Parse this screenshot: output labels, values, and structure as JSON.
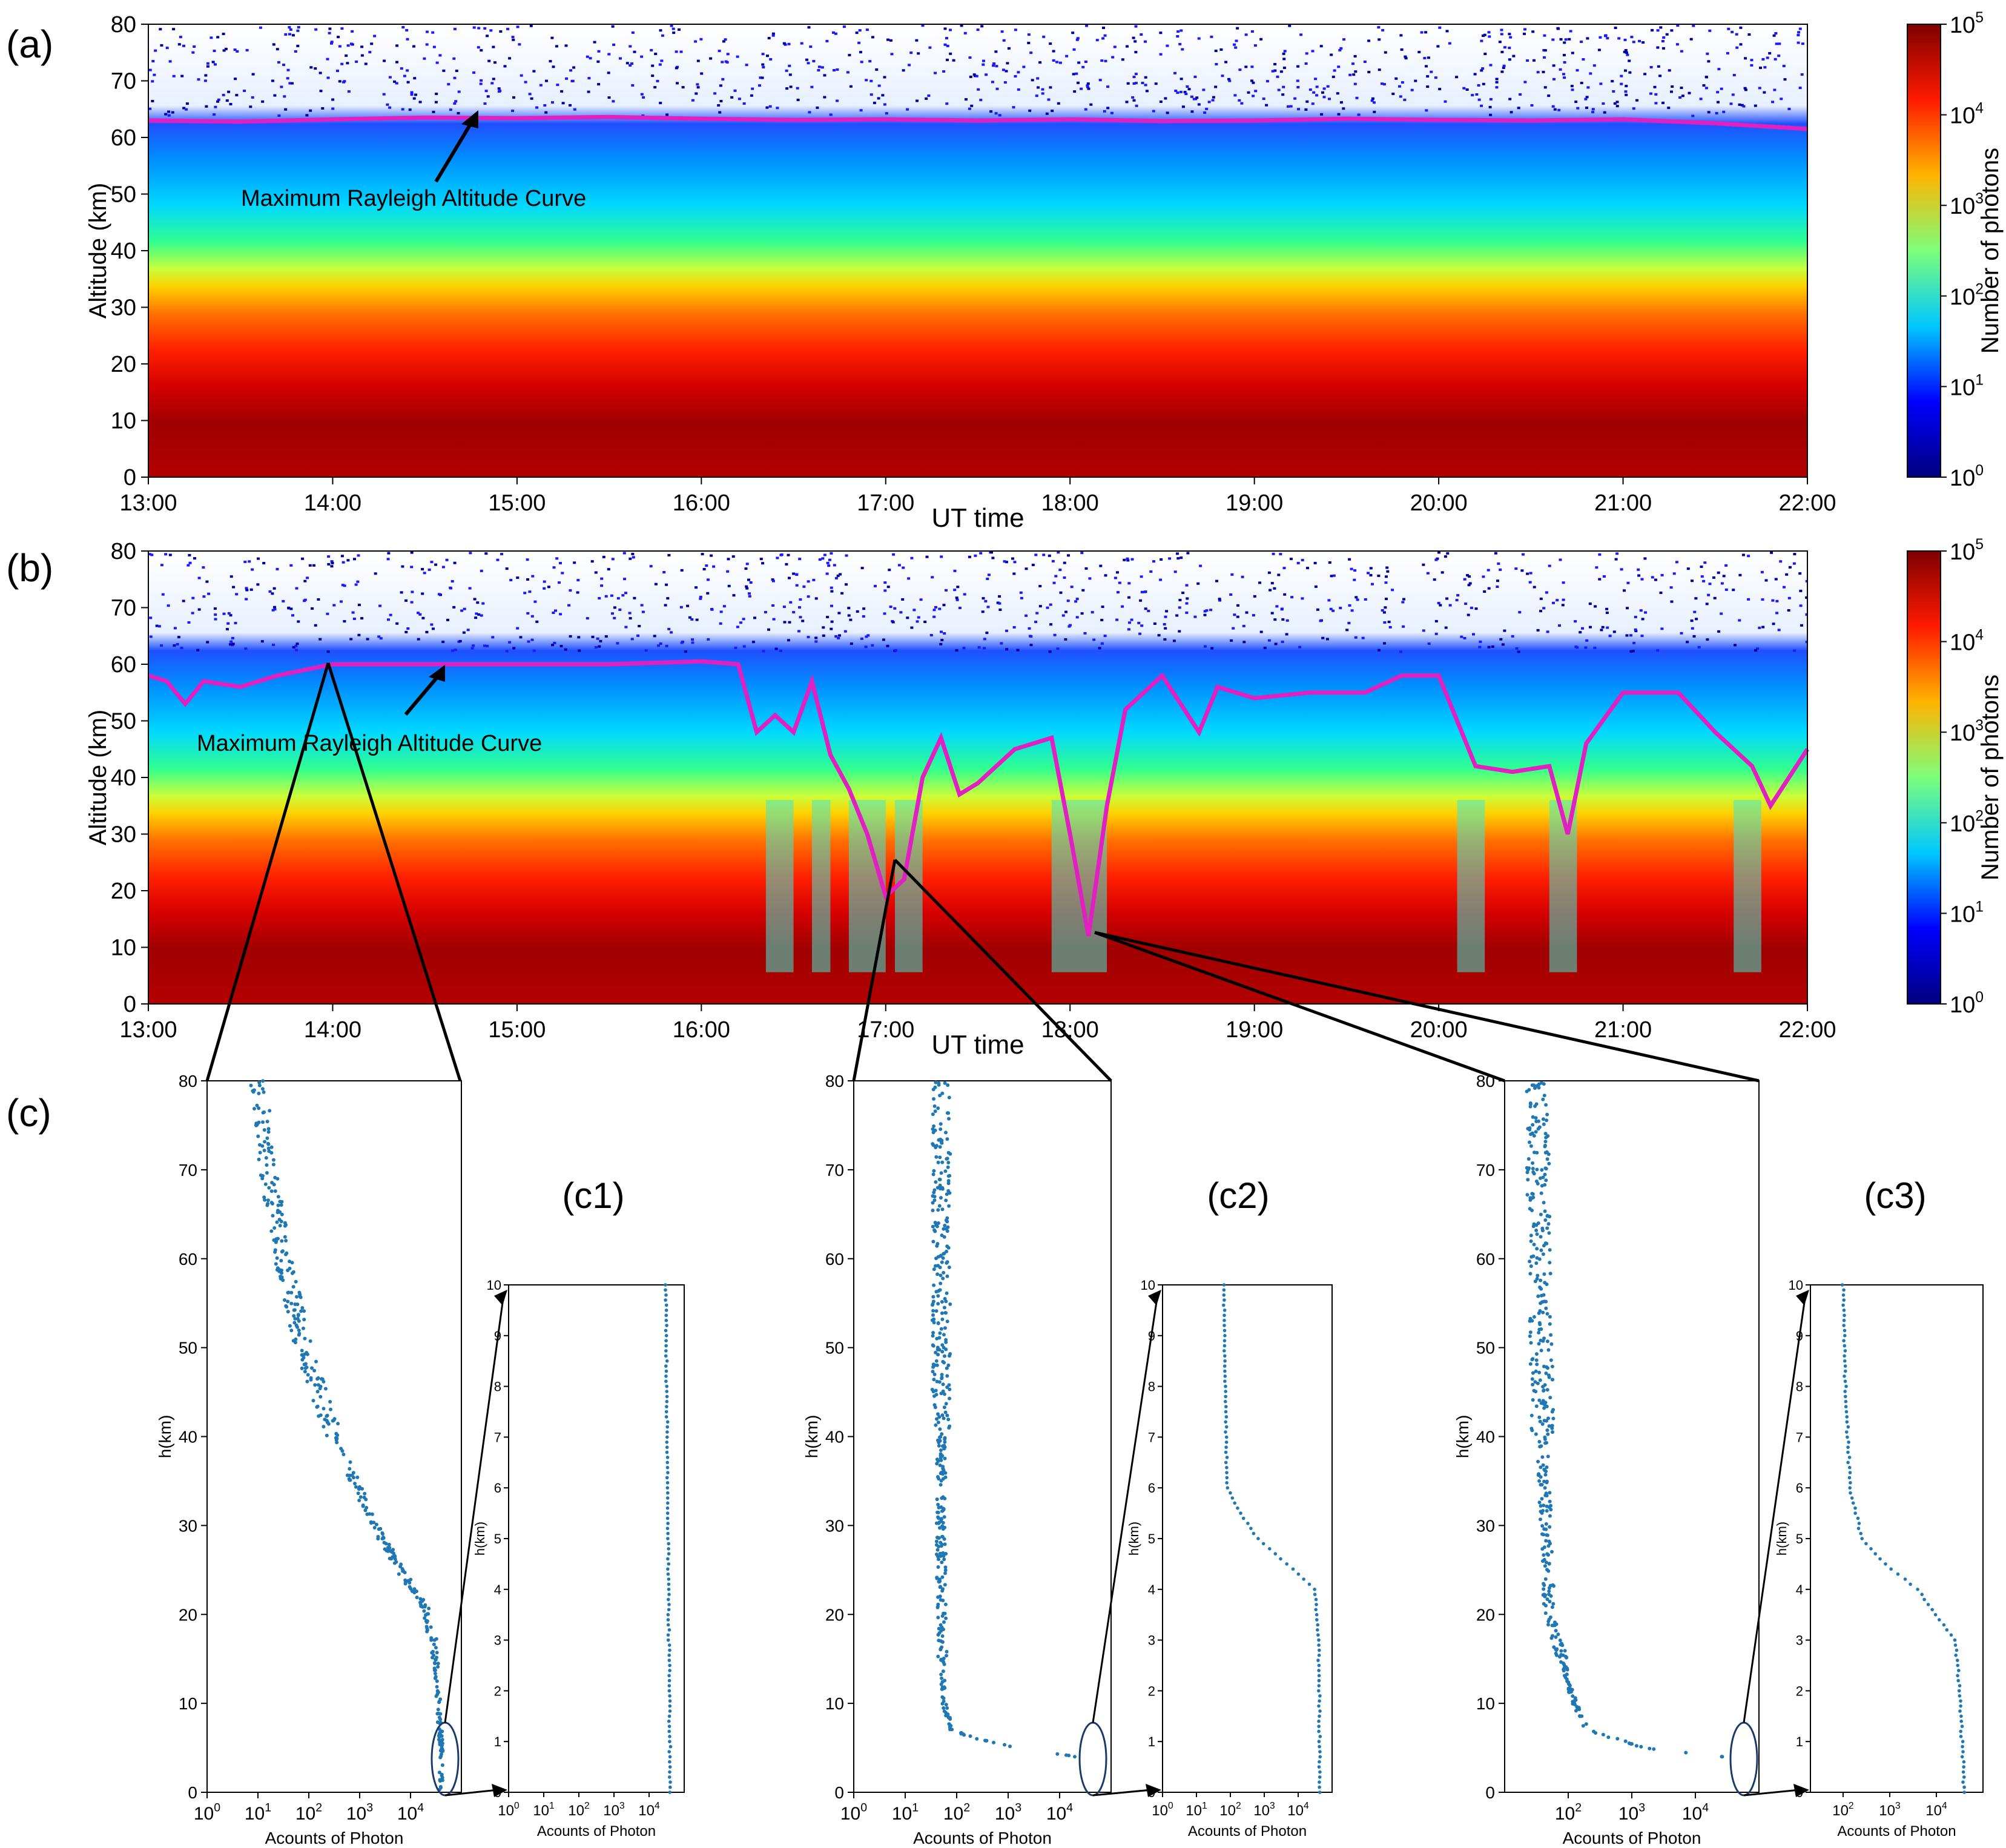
{
  "panel_tags": {
    "a": "(a)",
    "b": "(b)",
    "c": "(c)"
  },
  "colorbar": {
    "label": "Number of photons",
    "ticks": [
      "10^0",
      "10^1",
      "10^2",
      "10^3",
      "10^4",
      "10^5"
    ],
    "colors": [
      "#00007f",
      "#0000ff",
      "#00c8ff",
      "#7dff7a",
      "#ffb400",
      "#ff1a00",
      "#7f0000"
    ]
  },
  "chart_data": [
    {
      "id": "a",
      "type": "heatmap",
      "xlabel": "UT time",
      "ylabel": "Altitude (km)",
      "x_ticks": [
        "13:00",
        "14:00",
        "15:00",
        "16:00",
        "17:00",
        "18:00",
        "19:00",
        "20:00",
        "21:00",
        "22:00"
      ],
      "xlim_hours": [
        13,
        22
      ],
      "ylim": [
        0,
        80
      ],
      "y_ticks": [
        0,
        10,
        20,
        30,
        40,
        50,
        60,
        70,
        80
      ],
      "annotation": "Maximum Rayleigh Altitude Curve",
      "curve_color": "#e020c0",
      "curve": {
        "x": [
          13.0,
          13.5,
          14.0,
          14.5,
          15.0,
          15.5,
          16.0,
          16.5,
          17.0,
          17.5,
          18.0,
          18.5,
          19.0,
          19.5,
          20.0,
          20.5,
          21.0,
          21.5,
          22.0
        ],
        "y": [
          63,
          62.8,
          63.2,
          63.5,
          63.4,
          63.6,
          63.3,
          63.1,
          63.2,
          63.0,
          63.2,
          62.9,
          63.0,
          63.3,
          63.1,
          63.0,
          63.2,
          62.5,
          61.5
        ]
      }
    },
    {
      "id": "b",
      "type": "heatmap",
      "xlabel": "UT time",
      "ylabel": "Altitude (km)",
      "x_ticks": [
        "13:00",
        "14:00",
        "15:00",
        "16:00",
        "17:00",
        "18:00",
        "19:00",
        "20:00",
        "21:00",
        "22:00"
      ],
      "xlim_hours": [
        13,
        22
      ],
      "ylim": [
        0,
        80
      ],
      "y_ticks": [
        0,
        10,
        20,
        30,
        40,
        50,
        60,
        70,
        80
      ],
      "annotation": "Maximum Rayleigh Altitude Curve",
      "curve_color": "#e020c0",
      "curve": {
        "x": [
          13.0,
          13.1,
          13.2,
          13.3,
          13.5,
          13.7,
          14.0,
          14.5,
          15.0,
          15.5,
          16.0,
          16.2,
          16.3,
          16.4,
          16.5,
          16.6,
          16.7,
          16.8,
          16.9,
          17.0,
          17.1,
          17.2,
          17.3,
          17.4,
          17.5,
          17.7,
          17.9,
          18.0,
          18.1,
          18.2,
          18.3,
          18.5,
          18.7,
          18.8,
          19.0,
          19.3,
          19.6,
          19.8,
          20.0,
          20.2,
          20.4,
          20.6,
          20.7,
          20.8,
          21.0,
          21.3,
          21.5,
          21.7,
          21.8,
          22.0
        ],
        "y": [
          58,
          57,
          53,
          57,
          56,
          58,
          60,
          60,
          60,
          60,
          60.5,
          60,
          48,
          51,
          48,
          57,
          44,
          38,
          30,
          19,
          22,
          40,
          47,
          37,
          39,
          45,
          47,
          30,
          12,
          35,
          52,
          58,
          48,
          56,
          54,
          55,
          55,
          58,
          58,
          42,
          41,
          42,
          30,
          46,
          55,
          55,
          48,
          42,
          35,
          45
        ]
      }
    },
    {
      "id": "c1",
      "type": "scatter",
      "tag": "(c1)",
      "xlabel": "Acounts of Photon",
      "ylabel": "h(km)",
      "x_scale": "log",
      "x_ticks": [
        "10^0",
        "10^1",
        "10^2",
        "10^3",
        "10^4"
      ],
      "ylim": [
        0,
        80
      ],
      "y_ticks": [
        0,
        10,
        20,
        30,
        40,
        50,
        60,
        70,
        80
      ],
      "profile": {
        "h": [
          80,
          70,
          60,
          50,
          45,
          40,
          35,
          30,
          25,
          20,
          15,
          10,
          5,
          0
        ],
        "log": [
          1.0,
          1.2,
          1.5,
          1.9,
          2.2,
          2.5,
          2.9,
          3.3,
          3.8,
          4.35,
          4.5,
          4.55,
          4.6,
          4.6
        ]
      },
      "inset": {
        "ylabel": "h(km)",
        "xlabel": "Acounts of Photon",
        "x_ticks": [
          "10^0",
          "10^1",
          "10^2",
          "10^3",
          "10^4"
        ],
        "ylim": [
          0,
          10
        ],
        "y_ticks": [
          0,
          1,
          2,
          3,
          4,
          5,
          6,
          7,
          8,
          9,
          10
        ],
        "h": [
          0,
          2,
          4,
          6,
          8,
          10
        ],
        "log": [
          4.6,
          4.58,
          4.55,
          4.53,
          4.5,
          4.48
        ]
      }
    },
    {
      "id": "c2",
      "type": "scatter",
      "tag": "(c2)",
      "xlabel": "Acounts of Photon",
      "ylabel": "h(km)",
      "x_scale": "log",
      "x_ticks": [
        "10^0",
        "10^1",
        "10^2",
        "10^3",
        "10^4"
      ],
      "ylim": [
        0,
        80
      ],
      "y_ticks": [
        0,
        10,
        20,
        30,
        40,
        50,
        60,
        70,
        80
      ],
      "profile": {
        "h": [
          80,
          60,
          40,
          20,
          10,
          7,
          6,
          5,
          4
        ],
        "log": [
          1.7,
          1.7,
          1.7,
          1.7,
          1.75,
          1.9,
          2.4,
          3.2,
          4.3
        ]
      },
      "inset": {
        "ylabel": "h(km)",
        "xlabel": "Acounts of Photon",
        "x_ticks": [
          "10^0",
          "10^1",
          "10^2",
          "10^3",
          "10^4"
        ],
        "ylim": [
          0,
          10
        ],
        "y_ticks": [
          0,
          1,
          2,
          3,
          4,
          5,
          6,
          7,
          8,
          9,
          10
        ],
        "h": [
          10,
          8,
          6,
          5.5,
          5,
          4.6,
          4,
          3,
          2,
          1,
          0
        ],
        "log": [
          1.8,
          1.85,
          1.9,
          2.3,
          2.8,
          3.5,
          4.5,
          4.6,
          4.62,
          4.63,
          4.63
        ]
      }
    },
    {
      "id": "c3",
      "type": "scatter",
      "tag": "(c3)",
      "xlabel": "Acounts of Photon",
      "ylabel": "h(km)",
      "x_scale": "log",
      "x_ticks": [
        "10^2",
        "10^3",
        "10^4"
      ],
      "ylim": [
        0,
        80
      ],
      "y_ticks": [
        0,
        10,
        20,
        30,
        40,
        50,
        60,
        70,
        80
      ],
      "profile": {
        "h": [
          80,
          60,
          40,
          20,
          15,
          10,
          7,
          5,
          4
        ],
        "log": [
          1.5,
          1.55,
          1.6,
          1.7,
          1.9,
          2.1,
          2.3,
          3.2,
          4.4
        ]
      },
      "inset": {
        "ylabel": "h(km)",
        "xlabel": "Acounts of Photon",
        "x_ticks": [
          "10^2",
          "10^3",
          "10^4"
        ],
        "ylim": [
          0,
          10
        ],
        "y_ticks": [
          0,
          1,
          2,
          3,
          4,
          5,
          6,
          7,
          8,
          9,
          10
        ],
        "h": [
          10,
          8,
          6,
          5,
          4.5,
          4,
          3,
          2,
          1,
          0
        ],
        "log": [
          2.0,
          2.05,
          2.15,
          2.4,
          2.9,
          3.6,
          4.4,
          4.5,
          4.55,
          4.6
        ]
      }
    }
  ]
}
